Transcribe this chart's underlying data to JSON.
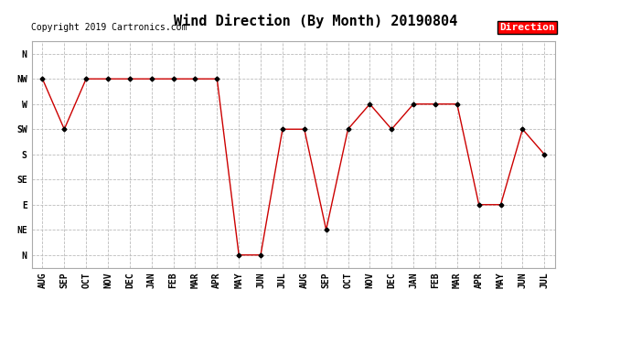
{
  "title": "Wind Direction (By Month) 20190804",
  "copyright": "Copyright 2019 Cartronics.com",
  "legend_label": "Direction",
  "legend_bg": "#ff0000",
  "legend_text_color": "#ffffff",
  "x_labels": [
    "AUG",
    "SEP",
    "OCT",
    "NOV",
    "DEC",
    "JAN",
    "FEB",
    "MAR",
    "APR",
    "MAY",
    "JUN",
    "JUL",
    "AUG",
    "SEP",
    "OCT",
    "NOV",
    "DEC",
    "JAN",
    "FEB",
    "MAR",
    "APR",
    "MAY",
    "JUN",
    "JUL"
  ],
  "y_labels": [
    "N",
    "NE",
    "E",
    "SE",
    "S",
    "SW",
    "W",
    "NW",
    "N"
  ],
  "y_values": [
    0,
    1,
    2,
    3,
    4,
    5,
    6,
    7,
    8
  ],
  "data_points": [
    7,
    5,
    7,
    7,
    7,
    7,
    7,
    7,
    7,
    0,
    0,
    5,
    5,
    1,
    5,
    6,
    5,
    6,
    6,
    6,
    2,
    2,
    5,
    4
  ],
  "line_color": "#cc0000",
  "marker_color": "#000000",
  "bg_color": "#ffffff",
  "grid_color": "#bbbbbb",
  "title_fontsize": 11,
  "copyright_fontsize": 7,
  "axis_label_fontsize": 7,
  "legend_fontsize": 8
}
